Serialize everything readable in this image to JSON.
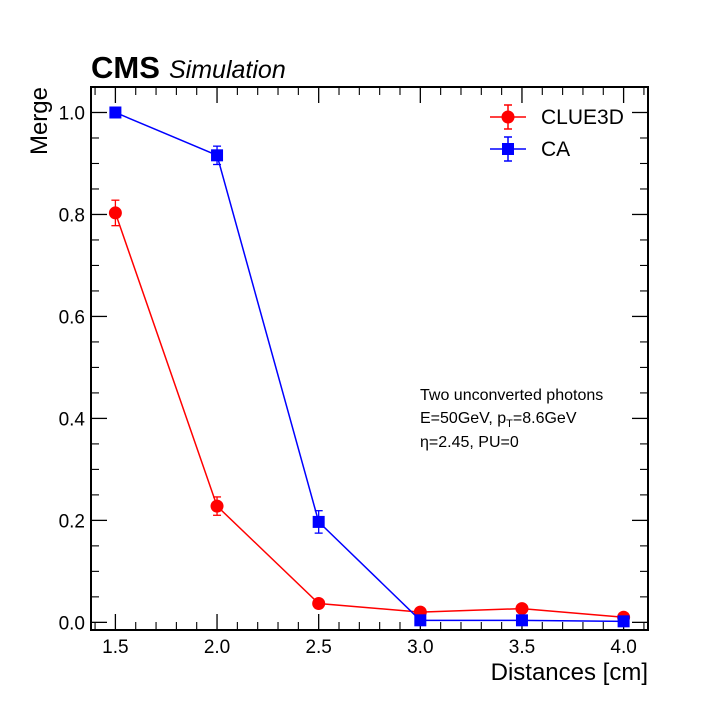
{
  "chart_data": {
    "type": "line",
    "experiment_label": "CMS",
    "experiment_sublabel": "Simulation",
    "xlabel": "Distances [cm]",
    "ylabel": "Merge",
    "xlim": [
      1.38,
      4.12
    ],
    "ylim": [
      -0.015,
      1.05
    ],
    "x_ticks": [
      1.5,
      2.0,
      2.5,
      3.0,
      3.5,
      4.0
    ],
    "x_tick_labels": [
      "1.5",
      "2.0",
      "2.5",
      "3.0",
      "3.5",
      "4.0"
    ],
    "y_ticks": [
      0.0,
      0.2,
      0.4,
      0.6,
      0.8,
      1.0
    ],
    "y_tick_labels": [
      "0.0",
      "0.2",
      "0.4",
      "0.6",
      "0.8",
      "1.0"
    ],
    "legend_position": "top-right",
    "series": [
      {
        "name": "CLUE3D",
        "color": "#ff0000",
        "marker": "circle",
        "x": [
          1.5,
          2.0,
          2.5,
          3.0,
          3.5,
          4.0
        ],
        "y": [
          0.803,
          0.228,
          0.037,
          0.02,
          0.027,
          0.01
        ],
        "yerr": [
          0.025,
          0.018,
          0.004,
          0.003,
          0.004,
          0.002
        ]
      },
      {
        "name": "CA",
        "color": "#0000ff",
        "marker": "square",
        "x": [
          1.5,
          2.0,
          2.5,
          3.0,
          3.5,
          4.0
        ],
        "y": [
          1.0,
          0.916,
          0.197,
          0.004,
          0.004,
          0.002
        ],
        "yerr": [
          0.0,
          0.018,
          0.022,
          0.001,
          0.001,
          0.001
        ]
      }
    ],
    "annotation": {
      "line1": "Two unconverted photons",
      "line2_prefix": "E=50GeV, p",
      "line2_sub": "T",
      "line2_suffix": "=8.6GeV",
      "line3": "η=2.45, PU=0"
    }
  }
}
